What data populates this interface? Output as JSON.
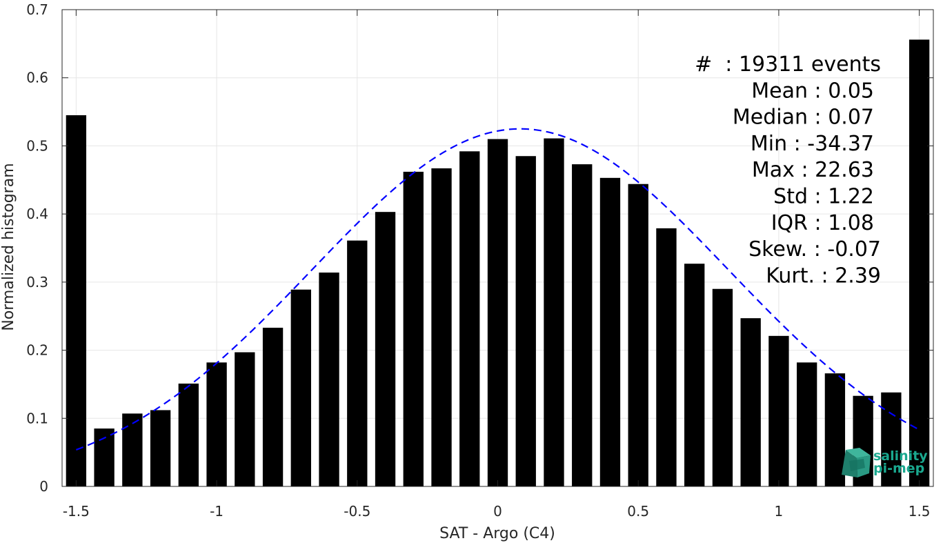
{
  "chart_data": {
    "type": "bar",
    "xlabel": "SAT - Argo (C4)",
    "ylabel": "Normalized histogram",
    "xlim": [
      -1.55,
      1.55
    ],
    "ylim": [
      0,
      0.7
    ],
    "grid": true,
    "x_ticks": [
      -1.5,
      -1,
      -0.5,
      0,
      0.5,
      1,
      1.5
    ],
    "x_tick_labels": [
      "-1.5",
      "-1",
      "-0.5",
      "0",
      "0.5",
      "1",
      "1.5"
    ],
    "y_ticks": [
      0,
      0.1,
      0.2,
      0.3,
      0.4,
      0.5,
      0.6,
      0.7
    ],
    "y_tick_labels": [
      "0",
      "0.1",
      "0.2",
      "0.3",
      "0.4",
      "0.5",
      "0.6",
      "0.7"
    ],
    "bar_color": "#000000",
    "x": [
      -1.5,
      -1.4,
      -1.3,
      -1.2,
      -1.1,
      -1.0,
      -0.9,
      -0.8,
      -0.7,
      -0.6,
      -0.5,
      -0.4,
      -0.3,
      -0.2,
      -0.1,
      0.0,
      0.1,
      0.2,
      0.3,
      0.4,
      0.5,
      0.6,
      0.7,
      0.8,
      0.9,
      1.0,
      1.1,
      1.2,
      1.3,
      1.4,
      1.5
    ],
    "values": [
      0.545,
      0.085,
      0.107,
      0.112,
      0.151,
      0.182,
      0.197,
      0.233,
      0.289,
      0.314,
      0.361,
      0.403,
      0.462,
      0.467,
      0.492,
      0.51,
      0.485,
      0.511,
      0.473,
      0.453,
      0.444,
      0.379,
      0.327,
      0.29,
      0.247,
      0.221,
      0.182,
      0.166,
      0.133,
      0.138,
      0.656
    ],
    "fit": {
      "type": "gaussian",
      "color": "#0000ff",
      "style": "dashed",
      "mean": 0.08,
      "sigma": 0.74,
      "peak": 0.525,
      "x_range": [
        -1.5,
        1.5
      ]
    },
    "annotations": [
      "#  : 19311 events",
      "Mean : 0.05",
      "Median : 0.07",
      "Min : -34.37",
      "Max : 22.63",
      "Std : 1.22",
      "IQR : 1.08",
      "Skew. : -0.07",
      "Kurt. : 2.39"
    ],
    "logo_text": [
      "salinity",
      "pi-mep"
    ]
  }
}
